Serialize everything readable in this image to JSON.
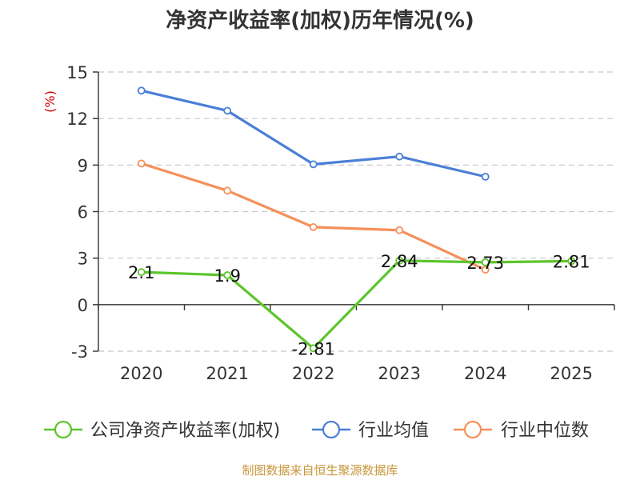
{
  "chart_data": {
    "type": "line",
    "title": "净资产收益率(加权)历年情况(%)",
    "ylabel": "(%)",
    "categories": [
      "2020",
      "2021",
      "2022",
      "2023",
      "2024",
      "2025"
    ],
    "ylim": [
      -3,
      15
    ],
    "yticks": [
      15,
      12,
      9,
      6,
      3,
      0,
      -3
    ],
    "grid": true,
    "legend_position": "bottom",
    "series": [
      {
        "name": "公司净资产收益率(加权)",
        "color": "#5cc52c",
        "values": [
          2.1,
          1.9,
          -2.81,
          2.84,
          2.73,
          2.81
        ],
        "labels": [
          "2.1",
          "1.9",
          "-2.81",
          "2.84",
          "2.73",
          "2.81"
        ]
      },
      {
        "name": "行业均值",
        "color": "#4a7fd6",
        "values": [
          13.8,
          12.5,
          9.05,
          9.55,
          8.25,
          null
        ]
      },
      {
        "name": "行业中位数",
        "color": "#f5905a",
        "values": [
          9.1,
          7.35,
          5.0,
          4.8,
          2.25,
          null
        ]
      }
    ]
  },
  "source": "制图数据来自恒生聚源数据库"
}
